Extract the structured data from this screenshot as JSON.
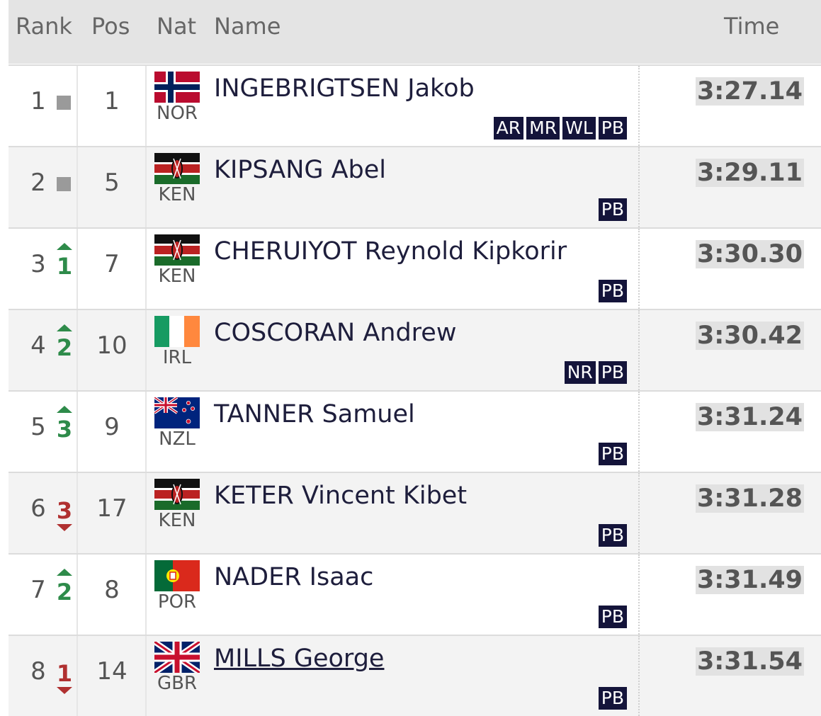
{
  "header": {
    "columns": [
      "Rank",
      "Pos",
      "Nat",
      "Name",
      "Time"
    ]
  },
  "table": {
    "rows": [
      {
        "rank": 1,
        "move": "same",
        "pos": 1,
        "nat": "NOR",
        "name": "INGEBRIGTSEN Jakob",
        "badges": [
          "AR",
          "MR",
          "WL",
          "PB"
        ],
        "time": "3:27.14"
      },
      {
        "rank": 2,
        "move": "same",
        "pos": 5,
        "nat": "KEN",
        "name": "KIPSANG Abel",
        "badges": [
          "PB"
        ],
        "time": "3:29.11"
      },
      {
        "rank": 3,
        "move": "up",
        "change": 1,
        "pos": 7,
        "nat": "KEN",
        "name": "CHERUIYOT Reynold Kipkorir",
        "badges": [
          "PB"
        ],
        "time": "3:30.30"
      },
      {
        "rank": 4,
        "move": "up",
        "change": 2,
        "pos": 10,
        "nat": "IRL",
        "name": "COSCORAN Andrew",
        "badges": [
          "NR",
          "PB"
        ],
        "time": "3:30.42"
      },
      {
        "rank": 5,
        "move": "up",
        "change": 3,
        "pos": 9,
        "nat": "NZL",
        "name": "TANNER Samuel",
        "badges": [
          "PB"
        ],
        "time": "3:31.24"
      },
      {
        "rank": 6,
        "move": "down",
        "change": 3,
        "pos": 17,
        "nat": "KEN",
        "name": "KETER Vincent Kibet",
        "badges": [
          "PB"
        ],
        "time": "3:31.28"
      },
      {
        "rank": 7,
        "move": "up",
        "change": 2,
        "pos": 8,
        "nat": "POR",
        "name": "NADER Isaac",
        "badges": [
          "PB"
        ],
        "time": "3:31.49"
      },
      {
        "rank": 8,
        "move": "down",
        "change": 1,
        "pos": 14,
        "nat": "GBR",
        "name": "MILLS George",
        "link": true,
        "badges": [
          "PB"
        ],
        "time": "3:31.54"
      }
    ]
  }
}
